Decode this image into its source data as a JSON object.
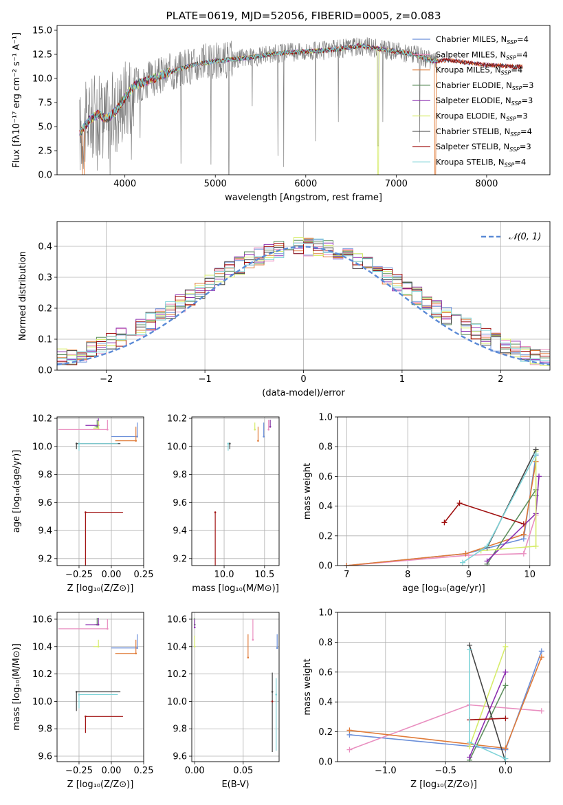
{
  "colors": {
    "chabrier_miles": "#6b8fd9",
    "salpeter_miles": "#e98fc0",
    "kroupa_miles": "#e07b39",
    "chabrier_elodie": "#5f8f5f",
    "salpeter_elodie": "#8c2fb0",
    "kroupa_elodie": "#d6ec6a",
    "chabrier_stelib": "#444444",
    "salpeter_stelib": "#a01010",
    "kroupa_stelib": "#7fd3d8",
    "data": "#808080"
  },
  "chart_data": [
    {
      "id": "spectrum",
      "type": "line",
      "title": "PLATE=0619, MJD=52056, FIBERID=0005, z=0.083",
      "xlabel": "wavelength [Angstrom, rest frame]",
      "ylabel": "Flux [fλ10⁻¹⁷ erg cm⁻² s⁻¹ A⁻¹]",
      "xlim": [
        3250,
        8700
      ],
      "ylim": [
        0,
        15.5
      ],
      "xticks": [
        4000,
        5000,
        6000,
        7000,
        8000
      ],
      "yticks": [
        0.0,
        2.5,
        5.0,
        7.5,
        10.0,
        12.5,
        15.0
      ],
      "legend": "top-right",
      "legend_entries": [
        {
          "label": "Chabrier MILES, N",
          "sub": "SSP",
          "tail": "=4",
          "color_key": "chabrier_miles"
        },
        {
          "label": "Salpeter MILES, N",
          "sub": "SSP",
          "tail": "=4",
          "color_key": "salpeter_miles"
        },
        {
          "label": "Kroupa MILES, N",
          "sub": "SSP",
          "tail": "=4",
          "color_key": "kroupa_miles"
        },
        {
          "label": "Chabrier ELODIE, N",
          "sub": "SSP",
          "tail": "=3",
          "color_key": "chabrier_elodie"
        },
        {
          "label": "Salpeter ELODIE, N",
          "sub": "SSP",
          "tail": "=3",
          "color_key": "salpeter_elodie"
        },
        {
          "label": "Kroupa ELODIE, N",
          "sub": "SSP",
          "tail": "=3",
          "color_key": "kroupa_elodie"
        },
        {
          "label": "Chabrier STELIB, N",
          "sub": "SSP",
          "tail": "=4",
          "color_key": "chabrier_stelib"
        },
        {
          "label": "Salpeter STELIB, N",
          "sub": "SSP",
          "tail": "=3",
          "color_key": "salpeter_stelib"
        },
        {
          "label": "Kroupa STELIB, N",
          "sub": "SSP",
          "tail": "=4",
          "color_key": "kroupa_stelib"
        }
      ],
      "model_trend": {
        "x": [
          3500,
          3600,
          3700,
          3800,
          3900,
          4000,
          4100,
          4200,
          4400,
          4600,
          4800,
          5000,
          5200,
          5400,
          5600,
          5800,
          6000,
          6200,
          6400,
          6600,
          6800,
          7000,
          7200,
          7400,
          7600,
          7800,
          8000,
          8200,
          8400
        ],
        "y": [
          4.3,
          5.6,
          6.3,
          5.8,
          6.6,
          8.0,
          9.2,
          9.6,
          10.3,
          11.0,
          11.5,
          11.8,
          12.0,
          12.2,
          12.5,
          12.7,
          12.8,
          12.9,
          13.1,
          13.4,
          13.1,
          12.8,
          12.5,
          11.8,
          11.9,
          11.6,
          11.4,
          11.3,
          11.2
        ]
      },
      "extended_series": [
        "salpeter_stelib",
        "chabrier_stelib",
        "salpeter_miles",
        "chabrier_miles",
        "kroupa_miles"
      ],
      "dropouts": [
        {
          "series": "kroupa_miles",
          "x": 3540
        },
        {
          "series": "kroupa_elodie",
          "x": 6800
        },
        {
          "series": "kroupa_miles",
          "x": 7430
        }
      ],
      "data_range": [
        3500,
        7460
      ]
    },
    {
      "id": "residuals",
      "type": "step-histogram",
      "xlabel": "(data-model)/error",
      "ylabel": "Normed distribution",
      "xlim": [
        -2.5,
        2.5
      ],
      "ylim": [
        0,
        0.48
      ],
      "xticks": [
        -2,
        -1,
        0,
        1,
        2
      ],
      "yticks": [
        0.0,
        0.1,
        0.2,
        0.3,
        0.4
      ],
      "bin_width": 0.1,
      "gaussian_label": "𝒩(0, 1)",
      "gaussian_color": "#5b8ad6",
      "legend": "top-right"
    },
    {
      "id": "age_vs_Z",
      "type": "errorbar",
      "xlabel": "Z [log₁₀(Z/Z⊙)]",
      "ylabel": "age  [log₁₀(age/yr)]",
      "xlim": [
        -0.42,
        0.25
      ],
      "ylim": [
        9.15,
        10.21
      ],
      "xticks": [
        -0.25,
        0.0,
        0.25
      ],
      "xtick_labels": [
        "−0.25",
        "0.00",
        "0.25"
      ],
      "yticks": [
        9.2,
        9.4,
        9.6,
        9.8,
        10.0,
        10.2
      ],
      "points": [
        {
          "key": "chabrier_miles",
          "x": 0.2,
          "y": 10.07,
          "xerr": [
            0.2,
            0.0
          ],
          "yerr": [
            0.1,
            0.0
          ]
        },
        {
          "key": "salpeter_miles",
          "x": -0.03,
          "y": 10.12,
          "xerr": [
            0.38,
            0.0
          ],
          "yerr": [
            0.07,
            0.0
          ]
        },
        {
          "key": "kroupa_miles",
          "x": 0.19,
          "y": 10.04,
          "xerr": [
            0.16,
            0.0
          ],
          "yerr": [
            0.1,
            0.0
          ]
        },
        {
          "key": "chabrier_elodie",
          "x": -0.11,
          "y": 10.14,
          "xerr": [
            0.02,
            0.0
          ],
          "yerr": [
            0.05,
            0.0
          ]
        },
        {
          "key": "salpeter_elodie",
          "x": -0.1,
          "y": 10.15,
          "xerr": [
            0.1,
            0.0
          ],
          "yerr": [
            0.05,
            0.0
          ]
        },
        {
          "key": "kroupa_elodie",
          "x": -0.1,
          "y": 10.13,
          "xerr": [
            0.04,
            0.0
          ],
          "yerr": [
            0.05,
            0.0
          ]
        },
        {
          "key": "chabrier_stelib",
          "x": -0.27,
          "y": 10.02,
          "xerr": [
            0.0,
            0.34
          ],
          "yerr": [
            0.0,
            0.04
          ]
        },
        {
          "key": "salpeter_stelib",
          "x": -0.2,
          "y": 9.53,
          "xerr": [
            0.0,
            0.29
          ],
          "yerr": [
            0.0,
            0.41
          ]
        },
        {
          "key": "kroupa_stelib",
          "x": -0.25,
          "y": 10.02,
          "xerr": [
            0.0,
            0.3
          ],
          "yerr": [
            0.0,
            0.05
          ]
        }
      ]
    },
    {
      "id": "age_vs_mass",
      "type": "errorbar",
      "xlabel": "mass [log₁₀(M/M⊙)]",
      "ylabel": "",
      "xlim": [
        9.6,
        10.68
      ],
      "ylim": [
        9.15,
        10.21
      ],
      "xticks": [
        10.0,
        10.5
      ],
      "xtick_labels": [
        "10.0",
        "10.5"
      ],
      "yticks": [
        9.2,
        9.4,
        9.6,
        9.8,
        10.0,
        10.2
      ],
      "points": [
        {
          "key": "chabrier_miles",
          "x": 10.49,
          "y": 10.07,
          "xerr": [
            0.0,
            0.0
          ],
          "yerr": [
            0.1,
            0.0
          ]
        },
        {
          "key": "salpeter_miles",
          "x": 10.55,
          "y": 10.12,
          "xerr": [
            0.0,
            0.0
          ],
          "yerr": [
            0.07,
            0.0
          ]
        },
        {
          "key": "kroupa_miles",
          "x": 10.42,
          "y": 10.04,
          "xerr": [
            0.0,
            0.0
          ],
          "yerr": [
            0.1,
            0.0
          ]
        },
        {
          "key": "chabrier_elodie",
          "x": 10.57,
          "y": 10.14,
          "xerr": [
            0.0,
            0.0
          ],
          "yerr": [
            0.05,
            0.0
          ]
        },
        {
          "key": "salpeter_elodie",
          "x": 10.57,
          "y": 10.14,
          "xerr": [
            0.0,
            0.0
          ],
          "yerr": [
            0.05,
            0.0
          ]
        },
        {
          "key": "kroupa_elodie",
          "x": 10.38,
          "y": 10.12,
          "xerr": [
            0.0,
            0.0
          ],
          "yerr": [
            0.05,
            0.0
          ]
        },
        {
          "key": "chabrier_stelib",
          "x": 10.07,
          "y": 10.02,
          "xerr": [
            0.0,
            0.0
          ],
          "yerr": [
            0.0,
            0.04
          ]
        },
        {
          "key": "salpeter_stelib",
          "x": 9.89,
          "y": 9.53,
          "xerr": [
            0.0,
            0.0
          ],
          "yerr": [
            0.0,
            0.41
          ]
        },
        {
          "key": "kroupa_stelib",
          "x": 10.05,
          "y": 10.02,
          "xerr": [
            0.0,
            0.0
          ],
          "yerr": [
            0.0,
            0.05
          ]
        }
      ]
    },
    {
      "id": "weight_vs_age",
      "type": "line",
      "xlabel": "age  [log₁₀(age/yr)]",
      "ylabel": "mass weight",
      "xlim": [
        6.85,
        10.33
      ],
      "ylim": [
        0,
        1.0
      ],
      "xticks": [
        7,
        8,
        9,
        10
      ],
      "yticks": [
        0.0,
        0.2,
        0.4,
        0.6,
        0.8,
        1.0
      ],
      "series": [
        {
          "key": "chabrier_miles",
          "x": [
            7.0,
            8.95,
            9.9,
            10.1
          ],
          "y": [
            0.0,
            0.08,
            0.18,
            0.74
          ]
        },
        {
          "key": "salpeter_miles",
          "x": [
            7.0,
            9.0,
            9.9,
            10.1
          ],
          "y": [
            0.0,
            0.07,
            0.08,
            0.34
          ]
        },
        {
          "key": "kroupa_miles",
          "x": [
            7.0,
            8.95,
            9.9,
            10.1
          ],
          "y": [
            0.0,
            0.08,
            0.21,
            0.7
          ]
        },
        {
          "key": "chabrier_elodie",
          "x": [
            9.3,
            10.1,
            10.1
          ],
          "y": [
            0.01,
            0.51,
            0.47
          ]
        },
        {
          "key": "salpeter_elodie",
          "x": [
            9.3,
            10.1,
            10.15
          ],
          "y": [
            0.03,
            0.35,
            0.6
          ]
        },
        {
          "key": "kroupa_elodie",
          "x": [
            9.2,
            10.1,
            10.1
          ],
          "y": [
            0.1,
            0.13,
            0.77
          ]
        },
        {
          "key": "chabrier_stelib",
          "x": [
            9.3,
            10.1
          ],
          "y": [
            0.12,
            0.78
          ]
        },
        {
          "key": "salpeter_stelib",
          "x": [
            8.6,
            8.85,
            9.9
          ],
          "y": [
            0.29,
            0.42,
            0.28
          ]
        },
        {
          "key": "kroupa_stelib",
          "x": [
            8.9,
            9.3,
            10.1
          ],
          "y": [
            0.02,
            0.13,
            0.75
          ]
        }
      ]
    },
    {
      "id": "mass_vs_Z",
      "type": "errorbar",
      "xlabel": "Z [log₁₀(Z/Z⊙)]",
      "ylabel": "mass [log₁₀(M/M⊙)]",
      "xlim": [
        -0.42,
        0.25
      ],
      "ylim": [
        9.56,
        10.65
      ],
      "xticks": [
        -0.25,
        0.0,
        0.25
      ],
      "xtick_labels": [
        "−0.25",
        "0.00",
        "0.25"
      ],
      "yticks": [
        9.6,
        9.8,
        10.0,
        10.2,
        10.4,
        10.6
      ],
      "points": [
        {
          "key": "chabrier_miles",
          "x": 0.2,
          "y": 10.39,
          "xerr": [
            0.2,
            0.0
          ],
          "yerr": [
            0.1,
            0.0
          ]
        },
        {
          "key": "salpeter_miles",
          "x": -0.03,
          "y": 10.53,
          "xerr": [
            0.38,
            0.0
          ],
          "yerr": [
            0.07,
            0.0
          ]
        },
        {
          "key": "kroupa_miles",
          "x": 0.19,
          "y": 10.35,
          "xerr": [
            0.16,
            0.0
          ],
          "yerr": [
            0.1,
            0.0
          ]
        },
        {
          "key": "chabrier_elodie",
          "x": -0.11,
          "y": 10.56,
          "xerr": [
            0.02,
            0.0
          ],
          "yerr": [
            0.05,
            0.0
          ]
        },
        {
          "key": "salpeter_elodie",
          "x": -0.1,
          "y": 10.56,
          "xerr": [
            0.1,
            0.0
          ],
          "yerr": [
            0.05,
            0.0
          ]
        },
        {
          "key": "kroupa_elodie",
          "x": -0.1,
          "y": 10.4,
          "xerr": [
            0.04,
            0.0
          ],
          "yerr": [
            0.05,
            0.0
          ]
        },
        {
          "key": "chabrier_stelib",
          "x": -0.27,
          "y": 10.07,
          "xerr": [
            0.0,
            0.34
          ],
          "yerr": [
            0.0,
            0.14
          ]
        },
        {
          "key": "salpeter_stelib",
          "x": -0.2,
          "y": 9.89,
          "xerr": [
            0.0,
            0.29
          ],
          "yerr": [
            0.0,
            0.12
          ]
        },
        {
          "key": "kroupa_stelib",
          "x": -0.25,
          "y": 10.05,
          "xerr": [
            0.0,
            0.3
          ],
          "yerr": [
            0.0,
            0.1
          ]
        }
      ]
    },
    {
      "id": "mass_vs_ebv",
      "type": "errorbar",
      "xlabel": "E(B-V)",
      "ylabel": "",
      "xlim": [
        -0.003,
        0.087
      ],
      "ylim": [
        9.56,
        10.65
      ],
      "xticks": [
        0.0,
        0.05
      ],
      "xtick_labels": [
        "0.00",
        "0.05"
      ],
      "yticks": [
        9.6,
        9.8,
        10.0,
        10.2,
        10.4,
        10.6
      ],
      "points": [
        {
          "key": "chabrier_miles",
          "x": 0.085,
          "y": 10.39,
          "xerr": [
            0.0,
            0.0
          ],
          "yerr": [
            0.1,
            0.0
          ]
        },
        {
          "key": "salpeter_miles",
          "x": 0.06,
          "y": 10.45,
          "xerr": [
            0.0,
            0.0
          ],
          "yerr": [
            0.15,
            0.0
          ]
        },
        {
          "key": "kroupa_miles",
          "x": 0.055,
          "y": 10.32,
          "xerr": [
            0.0,
            0.0
          ],
          "yerr": [
            0.17,
            0.0
          ]
        },
        {
          "key": "chabrier_elodie",
          "x": 0.0,
          "y": 10.56,
          "xerr": [
            0.0,
            0.0
          ],
          "yerr": [
            0.05,
            0.0
          ]
        },
        {
          "key": "salpeter_elodie",
          "x": 0.0,
          "y": 10.54,
          "xerr": [
            0.0,
            0.0
          ],
          "yerr": [
            0.06,
            0.0
          ]
        },
        {
          "key": "kroupa_elodie",
          "x": 0.0,
          "y": 10.4,
          "xerr": [
            0.0,
            0.0
          ],
          "yerr": [
            0.08,
            0.0
          ]
        },
        {
          "key": "chabrier_stelib",
          "x": 0.08,
          "y": 10.07,
          "xerr": [
            0.0,
            0.0
          ],
          "yerr": [
            0.14,
            0.44
          ]
        },
        {
          "key": "salpeter_stelib",
          "x": 0.08,
          "y": 10.0,
          "xerr": [
            0.0,
            0.0
          ],
          "yerr": [
            0.0,
            0.0
          ]
        },
        {
          "key": "kroupa_stelib",
          "x": 0.084,
          "y": 10.05,
          "xerr": [
            0.0,
            0.0
          ],
          "yerr": [
            0.12,
            0.41
          ]
        }
      ]
    },
    {
      "id": "weight_vs_Z",
      "type": "line",
      "xlabel": "Z [log₁₀(Z/Z⊙)]",
      "ylabel": "mass weight",
      "xlim": [
        -1.4,
        0.37
      ],
      "ylim": [
        0,
        1.0
      ],
      "xticks": [
        -1.0,
        -0.5,
        0.0
      ],
      "xtick_labels": [
        "−1.0",
        "−0.5",
        "0.0"
      ],
      "yticks": [
        0.0,
        0.2,
        0.4,
        0.6,
        0.8,
        1.0
      ],
      "series": [
        {
          "key": "chabrier_miles",
          "x": [
            -1.3,
            0.0,
            0.3
          ],
          "y": [
            0.18,
            0.08,
            0.74
          ]
        },
        {
          "key": "salpeter_miles",
          "x": [
            -1.3,
            -0.3,
            0.3
          ],
          "y": [
            0.08,
            0.38,
            0.34
          ]
        },
        {
          "key": "kroupa_miles",
          "x": [
            -1.3,
            0.0,
            0.3
          ],
          "y": [
            0.21,
            0.09,
            0.7
          ]
        },
        {
          "key": "chabrier_elodie",
          "x": [
            -0.3,
            0.0
          ],
          "y": [
            0.01,
            0.51
          ]
        },
        {
          "key": "salpeter_elodie",
          "x": [
            -0.3,
            0.0
          ],
          "y": [
            0.03,
            0.6
          ]
        },
        {
          "key": "kroupa_elodie",
          "x": [
            -0.3,
            0.0
          ],
          "y": [
            0.1,
            0.77
          ]
        },
        {
          "key": "chabrier_stelib",
          "x": [
            -0.3,
            0.0
          ],
          "y": [
            0.78,
            0.0
          ]
        },
        {
          "key": "salpeter_stelib",
          "x": [
            -0.3,
            0.0
          ],
          "y": [
            0.28,
            0.29
          ]
        },
        {
          "key": "kroupa_stelib",
          "x": [
            -0.3,
            -0.3,
            0.0
          ],
          "y": [
            0.75,
            0.13,
            0.02
          ]
        }
      ]
    }
  ]
}
